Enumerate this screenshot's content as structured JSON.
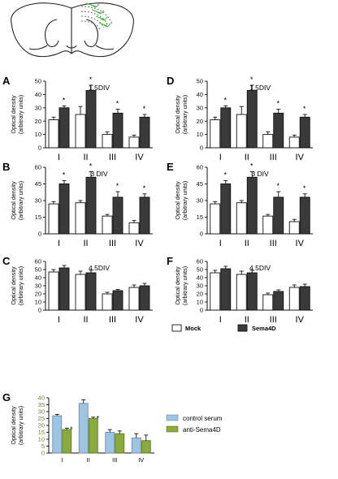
{
  "legend_top": {
    "mock": "Mock",
    "sema": "Sema4D"
  },
  "legend_bottom": {
    "control": "control serum",
    "anti": "anti-Sema4D"
  },
  "colors": {
    "white_bar": "#ffffff",
    "dark_bar": "#3a3a3a",
    "light_blue": "#9ec4e4",
    "olive": "#8aaa3c",
    "axis": "#111111",
    "green_accent": "#33bb33"
  },
  "chart_data": [
    {
      "panel": "A",
      "title": "1.5DIV",
      "type": "bar",
      "ylabel_line1": "Optical density",
      "ylabel_line2": "(arbitrary units)",
      "yticks": [
        "0",
        "10",
        "20",
        "30",
        "40",
        "50"
      ],
      "ylim": [
        0,
        50
      ],
      "categories": [
        "I",
        "II",
        "III",
        "IV"
      ],
      "series": [
        {
          "name": "Mock",
          "values": [
            21,
            25,
            10,
            8
          ],
          "errors": [
            2,
            6,
            2,
            1.5
          ]
        },
        {
          "name": "Sema4D",
          "values": [
            30,
            43,
            26,
            23
          ],
          "errors": [
            1.5,
            4,
            3,
            2
          ]
        }
      ],
      "sig": [
        "*",
        "*",
        "*",
        "*"
      ]
    },
    {
      "panel": "D",
      "title": "1.5DIV",
      "type": "bar",
      "ylabel_line1": "Optical density",
      "ylabel_line2": "(arbitrary units)",
      "yticks": [
        "0",
        "10",
        "20",
        "30",
        "40",
        "50"
      ],
      "ylim": [
        0,
        50
      ],
      "categories": [
        "I",
        "II",
        "III",
        "IV"
      ],
      "series": [
        {
          "name": "Mock",
          "values": [
            21,
            25,
            10,
            8
          ],
          "errors": [
            2,
            6,
            2,
            1.5
          ]
        },
        {
          "name": "Sema4D",
          "values": [
            30,
            43,
            26,
            23
          ],
          "errors": [
            1.5,
            4,
            3,
            2
          ]
        }
      ],
      "sig": [
        "*",
        "*",
        "*",
        "*"
      ]
    },
    {
      "panel": "B",
      "title": "3 DIV",
      "type": "bar",
      "ylabel_line1": "Optical density",
      "ylabel_line2": "(arbitrary units)",
      "yticks": [
        "0",
        "15",
        "30",
        "45",
        "60"
      ],
      "ylim": [
        0,
        60
      ],
      "categories": [
        "I",
        "II",
        "III",
        "IV"
      ],
      "series": [
        {
          "name": "Mock",
          "values": [
            27,
            28,
            16,
            10
          ],
          "errors": [
            2,
            2,
            1.5,
            2
          ]
        },
        {
          "name": "Sema4D",
          "values": [
            45,
            51,
            33,
            33
          ],
          "errors": [
            3,
            5,
            5,
            3
          ]
        }
      ],
      "sig": [
        "*",
        "*",
        "*",
        "*"
      ]
    },
    {
      "panel": "E",
      "title": "3 DIV",
      "type": "bar",
      "ylabel_line1": "Optical density",
      "ylabel_line2": "(arbitrary units)",
      "yticks": [
        "0",
        "15",
        "30",
        "45",
        "60"
      ],
      "ylim": [
        0,
        60
      ],
      "categories": [
        "I",
        "II",
        "III",
        "IV"
      ],
      "series": [
        {
          "name": "Mock",
          "values": [
            27,
            28,
            16,
            11
          ],
          "errors": [
            2,
            2,
            1.5,
            2
          ]
        },
        {
          "name": "Sema4D",
          "values": [
            45,
            51,
            33,
            33
          ],
          "errors": [
            3,
            5,
            5,
            3
          ]
        }
      ],
      "sig": [
        "*",
        "*",
        "*",
        "*"
      ]
    },
    {
      "panel": "C",
      "title": "4.5DIV",
      "type": "bar",
      "ylabel_line1": "Optical density",
      "ylabel_line2": "(arbitrary units)",
      "yticks": [
        "0",
        "10",
        "20",
        "30",
        "40",
        "50",
        "60"
      ],
      "ylim": [
        0,
        60
      ],
      "categories": [
        "I",
        "II",
        "III",
        "IV"
      ],
      "series": [
        {
          "name": "Mock",
          "values": [
            47,
            44,
            20,
            28
          ],
          "errors": [
            3,
            4,
            2,
            3
          ]
        },
        {
          "name": "Sema4D",
          "values": [
            52,
            46,
            24,
            30
          ],
          "errors": [
            3,
            3,
            1.5,
            3
          ]
        }
      ],
      "sig": [
        "",
        "",
        "",
        ""
      ]
    },
    {
      "panel": "F",
      "title": "4.5DIV",
      "type": "bar",
      "ylabel_line1": "Optical density",
      "ylabel_line2": "(arbitrary units)",
      "yticks": [
        "0",
        "10",
        "20",
        "30",
        "40",
        "50",
        "60"
      ],
      "ylim": [
        0,
        60
      ],
      "categories": [
        "I",
        "II",
        "III",
        "IV"
      ],
      "series": [
        {
          "name": "Mock",
          "values": [
            46,
            44,
            19,
            28
          ],
          "errors": [
            3,
            4,
            2,
            3
          ]
        },
        {
          "name": "Sema4D",
          "values": [
            51,
            46,
            23,
            29
          ],
          "errors": [
            3,
            3,
            2,
            3
          ]
        }
      ],
      "sig": [
        "",
        "",
        "",
        ""
      ]
    },
    {
      "panel": "G",
      "title": "",
      "type": "bar",
      "ylabel_line1": "Optical density",
      "ylabel_line2": "(arbitrary units)",
      "yticks": [
        "0",
        "5",
        "10",
        "15",
        "20",
        "25",
        "30",
        "35",
        "40"
      ],
      "ylim": [
        0,
        40
      ],
      "categories": [
        "I",
        "II",
        "III",
        "IV"
      ],
      "series": [
        {
          "name": "control serum",
          "values": [
            27,
            36,
            15,
            11
          ],
          "errors": [
            1,
            2.5,
            2,
            3
          ]
        },
        {
          "name": "anti-Sema4D",
          "values": [
            17,
            25,
            14,
            9
          ],
          "errors": [
            1,
            1,
            2,
            4
          ]
        }
      ],
      "sig": [
        "*",
        "*",
        "",
        ""
      ]
    }
  ]
}
